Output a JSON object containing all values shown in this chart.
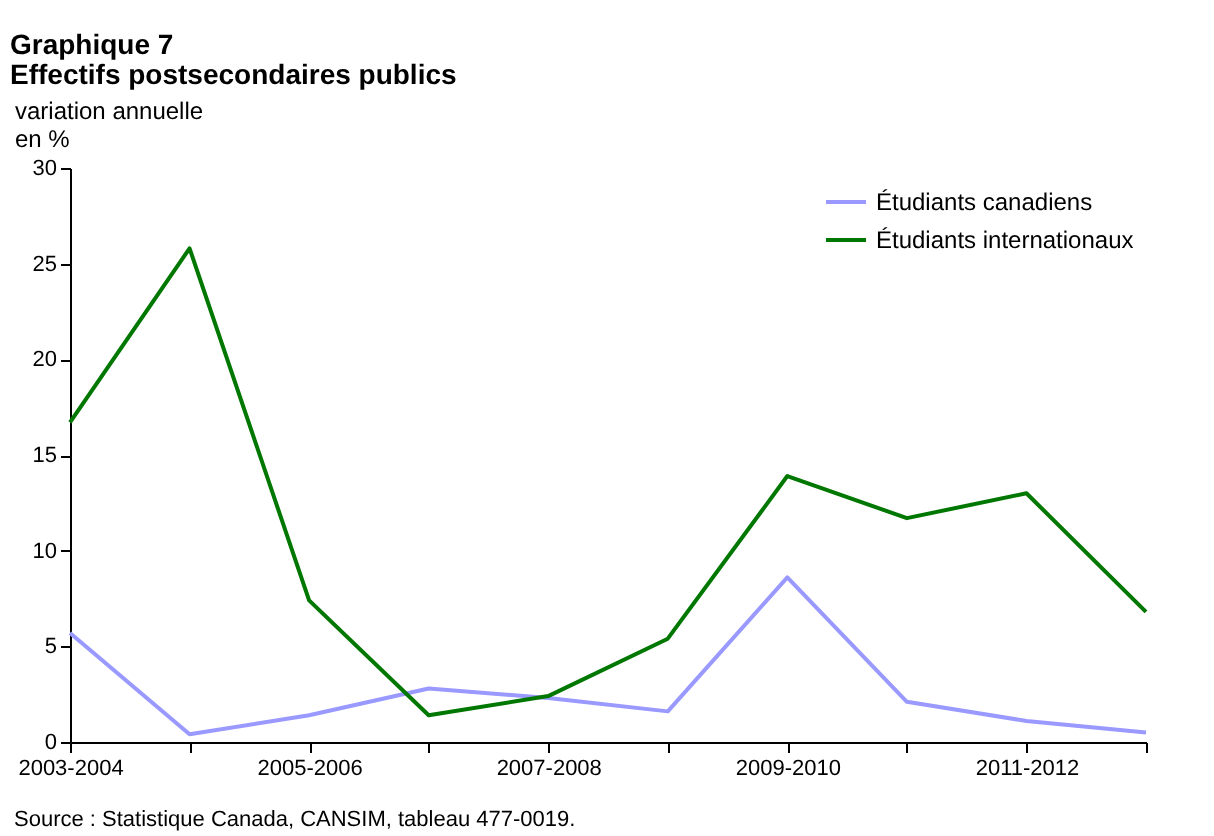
{
  "chart_data": {
    "type": "line",
    "title": "Graphique 7",
    "subtitle": "Effectifs postsecondaires publics",
    "ylabel": "variation annuelle\nen %",
    "categories": [
      "2003-2004",
      null,
      "2005-2006",
      null,
      "2007-2008",
      null,
      "2009-2010",
      null,
      "2011-2012",
      null
    ],
    "series": [
      {
        "name": "Étudiants canadiens",
        "color": "#9999ff",
        "values": [
          5.7,
          0.4,
          1.4,
          2.8,
          2.3,
          1.6,
          8.6,
          2.1,
          1.1,
          0.5
        ]
      },
      {
        "name": "Étudiants internationaux",
        "color": "#007700",
        "values": [
          16.7,
          25.8,
          7.4,
          1.4,
          2.4,
          5.4,
          13.9,
          11.7,
          13.0,
          6.8
        ]
      }
    ],
    "ylim": [
      0,
      30
    ],
    "yticks": [
      0,
      5,
      10,
      15,
      20,
      25,
      30
    ],
    "grid": false,
    "legend": "top right",
    "marker": "none",
    "line_style": "solid",
    "annotations": [
      "Source : Statistique Canada, CANSIM, tableau 477-0019."
    ]
  }
}
